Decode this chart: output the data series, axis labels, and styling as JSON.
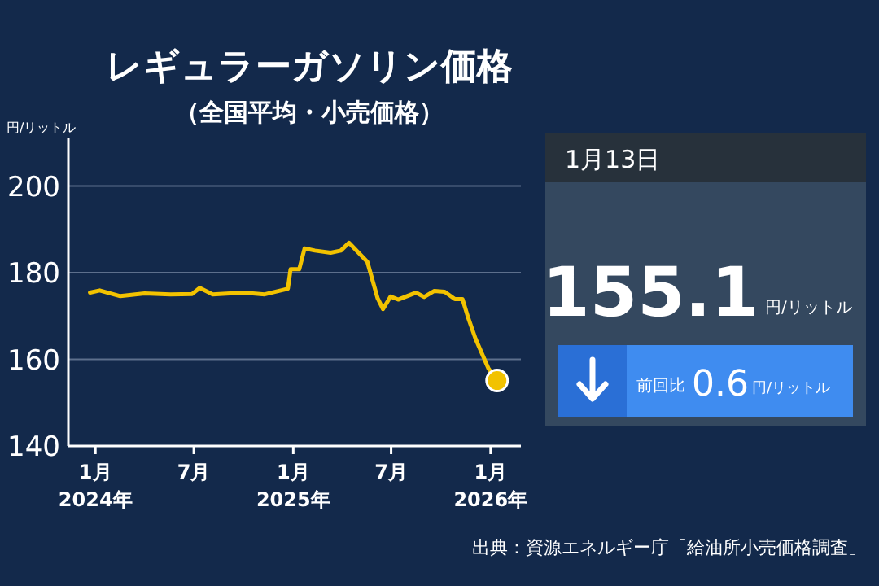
{
  "chart_data": [
    {
      "type": "line",
      "title": "レギュラーガソリン価格",
      "subtitle": "（全国平均・小売価格）",
      "ylabel": "円/リットル",
      "annotations": [
        "出典：資源エネルギー庁「給油所小売価格調査」"
      ],
      "xlim": [
        "2023-11-12",
        "2026-02-26"
      ],
      "ylim": [
        140,
        211
      ],
      "xticks": [
        {
          "value": "2024-01-01",
          "label": "1月\n2024年"
        },
        {
          "value": "2024-07-01",
          "label": "7月"
        },
        {
          "value": "2025-01-01",
          "label": "1月\n2025年"
        },
        {
          "value": "2025-07-01",
          "label": "7月"
        },
        {
          "value": "2026-01-01",
          "label": "1月\n2026年"
        }
      ],
      "yticks": [
        140,
        160,
        180,
        200
      ],
      "grid": "y",
      "line_style": "solid",
      "series": [
        {
          "type": "line",
          "color": "#f2c200",
          "marker": "none",
          "x": [
            "2023-12-22",
            "2024-01-09",
            "2024-02-16",
            "2024-04-01",
            "2024-05-19",
            "2024-06-28",
            "2024-07-12",
            "2024-08-05",
            "2024-10-01",
            "2024-11-09",
            "2024-12-12",
            "2024-12-22",
            "2024-12-27",
            "2025-01-12",
            "2025-01-22",
            "2025-02-10",
            "2025-03-11",
            "2025-03-30",
            "2025-04-14",
            "2025-05-18",
            "2025-06-06",
            "2025-06-16",
            "2025-06-30",
            "2025-07-14",
            "2025-08-16",
            "2025-08-31",
            "2025-09-19",
            "2025-10-08",
            "2025-10-27",
            "2025-11-10",
            "2025-11-20",
            "2025-12-04",
            "2025-12-28",
            "2026-01-13"
          ],
          "values": [
            175.4,
            175.9,
            174.6,
            175.2,
            175.0,
            175.1,
            176.5,
            175.0,
            175.4,
            175.0,
            176.0,
            176.3,
            180.8,
            180.8,
            185.6,
            185.1,
            184.6,
            185.1,
            186.9,
            182.5,
            174.1,
            171.6,
            174.5,
            173.8,
            175.4,
            174.4,
            175.8,
            175.6,
            173.9,
            173.9,
            169.8,
            164.8,
            157.9,
            155.1
          ]
        },
        {
          "type": "scatter",
          "color": "#f2c200",
          "marker": "circle",
          "x": [
            "2026-01-13"
          ],
          "values": [
            155.1
          ]
        }
      ]
    },
    {
      "type": "other",
      "title": "1月13日",
      "annotations": [
        "155.1",
        "円/リットル",
        "前回比",
        "0.6",
        "円/リットル"
      ]
    }
  ]
}
